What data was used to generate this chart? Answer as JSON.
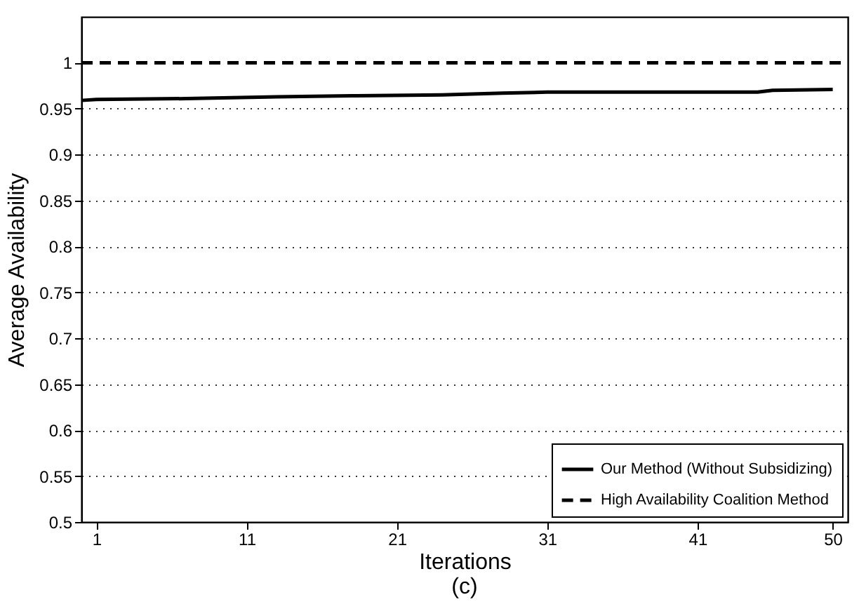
{
  "chart_data": {
    "type": "line",
    "xlabel": "Iterations",
    "ylabel": "Average Availability",
    "annotations": [
      "(c)"
    ],
    "xlim": [
      0,
      51
    ],
    "xticks": [
      1,
      11,
      21,
      31,
      41,
      50
    ],
    "ylim": [
      0.5,
      1.05
    ],
    "yticks": [
      0.5,
      0.55,
      0.6,
      0.65,
      0.7,
      0.75,
      0.8,
      0.85,
      0.9,
      0.95,
      1
    ],
    "grid": "y",
    "legend": "bottom right",
    "marker": "none",
    "series": [
      {
        "name": "Our Method (Without Subsidizing)",
        "color": "#000000",
        "line_style": "solid",
        "x": [
          0,
          1,
          7,
          10,
          13,
          18,
          24,
          28,
          31,
          45,
          46,
          50
        ],
        "values": [
          0.959,
          0.96,
          0.961,
          0.962,
          0.963,
          0.964,
          0.965,
          0.967,
          0.968,
          0.968,
          0.97,
          0.971
        ]
      },
      {
        "name": "High Availability Coalition Method",
        "color": "#000000",
        "line_style": "dashed",
        "x": [
          0,
          51
        ],
        "values": [
          1,
          1
        ]
      }
    ]
  }
}
